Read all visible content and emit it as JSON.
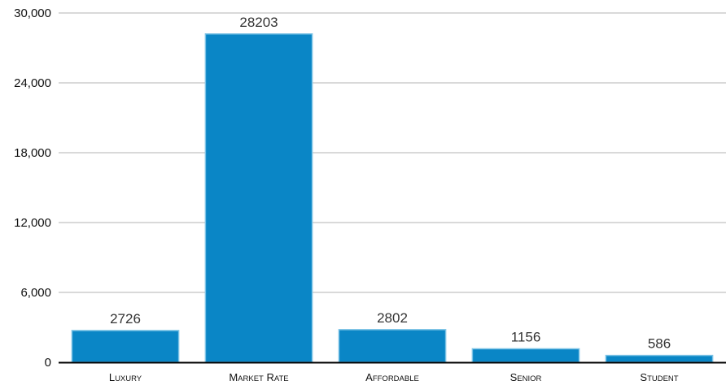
{
  "chart_data": {
    "type": "bar",
    "categories": [
      "Luxury",
      "Market Rate",
      "Affordable",
      "Senior",
      "Student"
    ],
    "values": [
      2726,
      28203,
      2802,
      1156,
      586
    ],
    "data_labels": [
      "2726",
      "28203",
      "2802",
      "1156",
      "586"
    ],
    "y_ticks": [
      "0",
      "6,000",
      "12,000",
      "18,000",
      "24,000",
      "30,000"
    ],
    "y_tick_values": [
      0,
      6000,
      12000,
      18000,
      24000,
      30000
    ],
    "ylim": [
      0,
      30000
    ],
    "grid": true,
    "legend": "none",
    "bar_color": "#0a86c6",
    "bar_border_color": "#7cc3e6",
    "grid_color": "#b3b3b3",
    "axis_color": "#000000"
  }
}
